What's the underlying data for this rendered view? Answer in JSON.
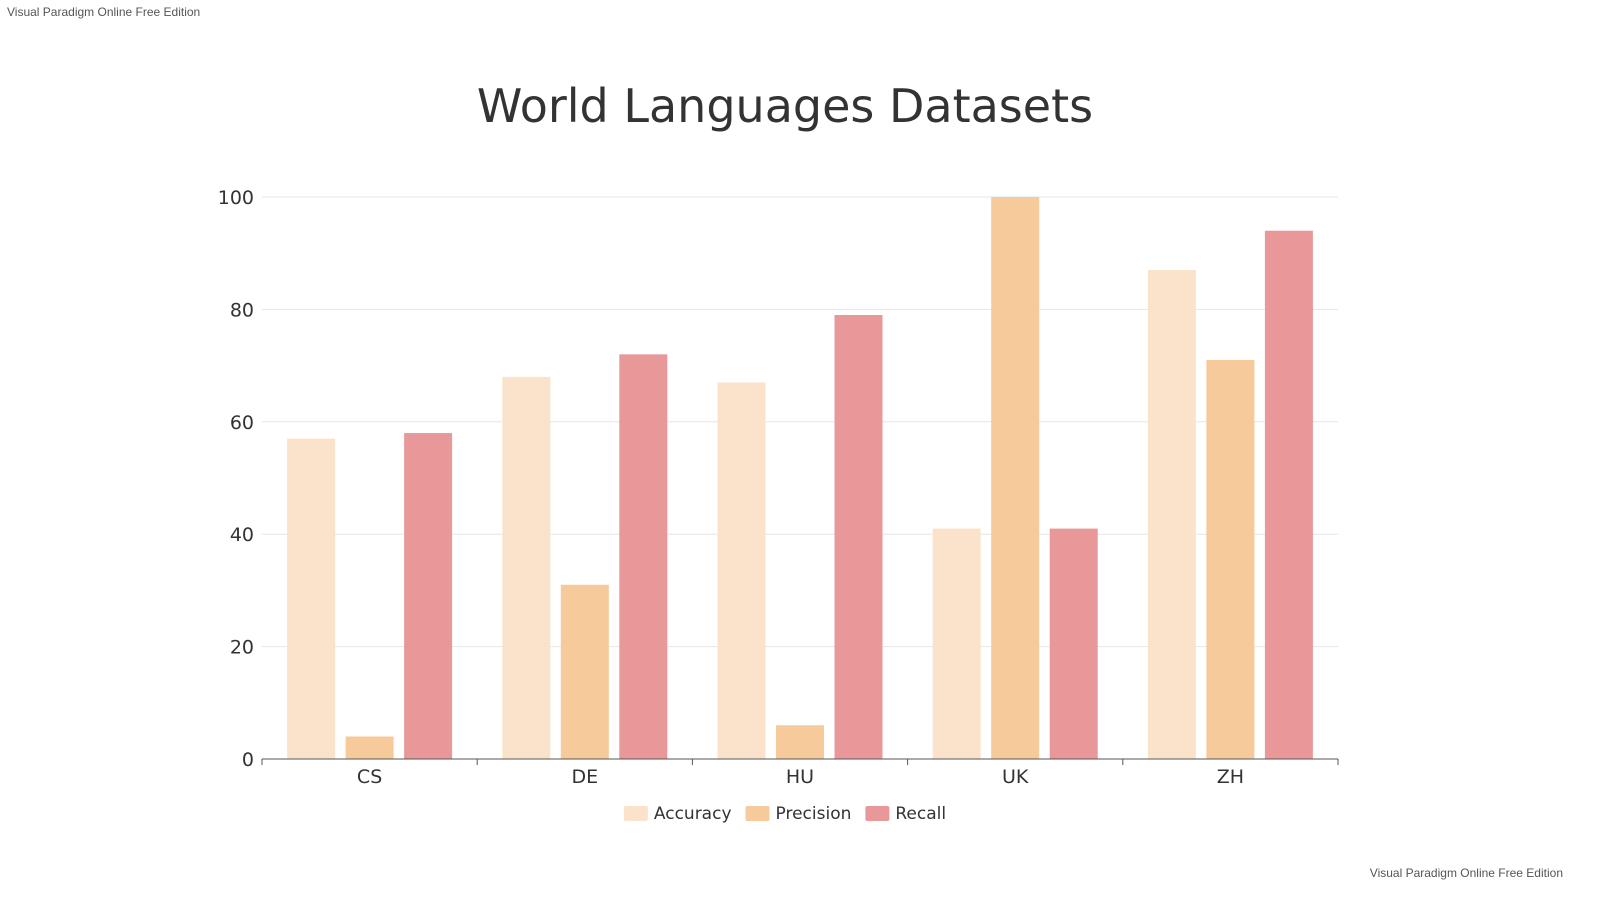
{
  "watermark": {
    "top_left": "Visual Paradigm Online Free Edition",
    "bottom_right": "Visual Paradigm Online Free Edition"
  },
  "chart_data": {
    "type": "bar",
    "title": "World Languages Datasets",
    "xlabel": "",
    "ylabel": "",
    "categories": [
      "CS",
      "DE",
      "HU",
      "UK",
      "ZH"
    ],
    "series": [
      {
        "name": "Accuracy",
        "color": "#fbe3cb",
        "values": [
          57,
          68,
          67,
          41,
          87
        ]
      },
      {
        "name": "Precision",
        "color": "#f7ca9b",
        "values": [
          4,
          31,
          6,
          100,
          71
        ]
      },
      {
        "name": "Recall",
        "color": "#e89898",
        "values": [
          58,
          72,
          79,
          41,
          94
        ]
      }
    ],
    "ylim": [
      0,
      100
    ],
    "yticks": [
      0,
      20,
      40,
      60,
      80,
      100
    ],
    "grid": true,
    "legend_position": "bottom"
  }
}
